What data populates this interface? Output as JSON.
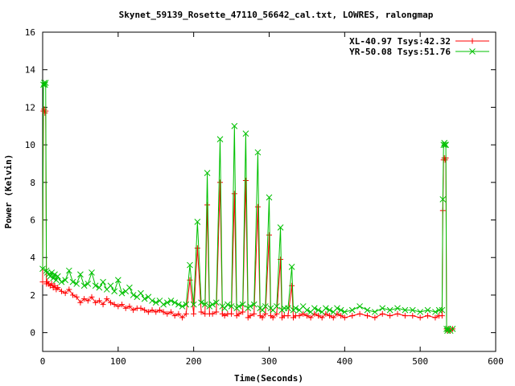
{
  "chart_data": {
    "type": "line",
    "title": "Skynet_59139_Rosette_47110_56642_cal.txt, LOWRES, ralongmap",
    "xlabel": "Time(Seconds)",
    "ylabel": "Power (Kelvin)",
    "xlim": [
      0,
      600
    ],
    "ylim": [
      -1,
      16
    ],
    "xticks": [
      0,
      100,
      200,
      300,
      400,
      500,
      600
    ],
    "yticks": [
      0,
      2,
      4,
      6,
      8,
      10,
      12,
      14,
      16
    ],
    "grid": false,
    "legend_position": "top-right",
    "series": [
      {
        "name": "XL-40.97 Tsys:42.32",
        "color": "#ff0000",
        "marker": "plus",
        "x": [
          0,
          1,
          2,
          3,
          4,
          5,
          6,
          8,
          10,
          12,
          14,
          16,
          18,
          20,
          25,
          30,
          35,
          40,
          45,
          50,
          55,
          60,
          65,
          70,
          75,
          80,
          85,
          90,
          95,
          100,
          105,
          110,
          115,
          120,
          125,
          130,
          135,
          140,
          145,
          150,
          155,
          160,
          165,
          170,
          175,
          180,
          185,
          190,
          195,
          200,
          205,
          210,
          215,
          218,
          221,
          225,
          230,
          235,
          238,
          241,
          245,
          250,
          254,
          257,
          260,
          265,
          269,
          272,
          275,
          280,
          285,
          288,
          291,
          295,
          300,
          302,
          305,
          310,
          315,
          317,
          320,
          325,
          330,
          332,
          335,
          340,
          345,
          350,
          355,
          360,
          365,
          370,
          375,
          380,
          385,
          390,
          395,
          400,
          410,
          420,
          430,
          440,
          450,
          460,
          470,
          480,
          490,
          500,
          510,
          520,
          525,
          529,
          530,
          531,
          532,
          533,
          534,
          535,
          536,
          537,
          540,
          543
        ],
        "y": [
          2.7,
          11.8,
          11.9,
          11.7,
          11.8,
          2.6,
          2.7,
          2.6,
          2.5,
          2.6,
          2.4,
          2.5,
          2.3,
          2.4,
          2.2,
          2.1,
          2.3,
          2.0,
          1.9,
          1.6,
          1.8,
          1.7,
          1.9,
          1.6,
          1.7,
          1.5,
          1.8,
          1.6,
          1.5,
          1.4,
          1.5,
          1.3,
          1.4,
          1.2,
          1.3,
          1.3,
          1.2,
          1.1,
          1.2,
          1.1,
          1.2,
          1.1,
          1.0,
          1.1,
          0.9,
          1.0,
          0.8,
          1.0,
          2.8,
          1.0,
          4.5,
          1.1,
          1.0,
          6.8,
          1.0,
          1.0,
          1.1,
          8.0,
          1.0,
          0.9,
          1.0,
          1.0,
          7.4,
          0.9,
          1.0,
          1.1,
          8.1,
          0.8,
          0.9,
          1.0,
          6.7,
          0.9,
          0.8,
          1.0,
          5.2,
          0.9,
          0.8,
          1.0,
          3.9,
          0.8,
          0.9,
          0.9,
          2.5,
          0.8,
          0.9,
          0.9,
          1.0,
          0.9,
          0.8,
          1.0,
          0.9,
          0.8,
          1.0,
          0.9,
          0.8,
          1.0,
          0.9,
          0.8,
          0.9,
          1.0,
          0.9,
          0.8,
          1.0,
          0.9,
          1.0,
          0.9,
          0.9,
          0.8,
          0.9,
          0.8,
          0.9,
          0.9,
          6.5,
          9.2,
          9.3,
          9.2,
          9.3,
          0.2,
          0.1,
          0.2,
          0.1,
          0.2
        ]
      },
      {
        "name": "YR-50.08 Tsys:51.76",
        "color": "#00c000",
        "marker": "cross",
        "x": [
          0,
          1,
          2,
          3,
          4,
          5,
          6,
          8,
          10,
          12,
          14,
          16,
          18,
          20,
          25,
          30,
          35,
          40,
          45,
          50,
          55,
          60,
          65,
          70,
          75,
          80,
          85,
          90,
          95,
          100,
          105,
          110,
          115,
          120,
          125,
          130,
          135,
          140,
          145,
          150,
          155,
          160,
          165,
          170,
          175,
          180,
          185,
          190,
          195,
          200,
          205,
          210,
          215,
          218,
          221,
          225,
          230,
          235,
          238,
          241,
          245,
          250,
          254,
          257,
          260,
          265,
          269,
          272,
          275,
          280,
          285,
          288,
          291,
          295,
          300,
          302,
          305,
          310,
          315,
          317,
          320,
          325,
          330,
          332,
          335,
          340,
          345,
          350,
          355,
          360,
          365,
          370,
          375,
          380,
          385,
          390,
          395,
          400,
          410,
          420,
          430,
          440,
          450,
          460,
          470,
          480,
          490,
          500,
          510,
          520,
          525,
          529,
          530,
          531,
          532,
          533,
          534,
          535,
          536,
          537,
          540,
          543
        ],
        "y": [
          3.4,
          13.2,
          13.3,
          13.2,
          13.3,
          3.3,
          3.2,
          3.1,
          3.0,
          3.2,
          2.9,
          3.1,
          2.8,
          3.0,
          2.7,
          2.8,
          3.3,
          2.7,
          2.6,
          3.1,
          2.5,
          2.6,
          3.2,
          2.5,
          2.4,
          2.7,
          2.3,
          2.5,
          2.2,
          2.8,
          2.1,
          2.2,
          2.4,
          2.0,
          1.9,
          2.1,
          1.8,
          1.9,
          1.7,
          1.6,
          1.7,
          1.5,
          1.6,
          1.7,
          1.6,
          1.5,
          1.4,
          1.5,
          3.6,
          1.5,
          5.9,
          1.6,
          1.5,
          8.5,
          1.4,
          1.5,
          1.6,
          10.3,
          1.4,
          1.3,
          1.5,
          1.4,
          11.0,
          1.3,
          1.4,
          1.5,
          10.6,
          1.3,
          1.4,
          1.5,
          9.6,
          1.3,
          1.2,
          1.4,
          7.2,
          1.3,
          1.2,
          1.4,
          5.6,
          1.2,
          1.3,
          1.3,
          3.5,
          1.2,
          1.3,
          1.2,
          1.4,
          1.2,
          1.1,
          1.3,
          1.2,
          1.1,
          1.3,
          1.2,
          1.1,
          1.3,
          1.2,
          1.1,
          1.2,
          1.4,
          1.2,
          1.1,
          1.3,
          1.2,
          1.3,
          1.2,
          1.2,
          1.1,
          1.2,
          1.1,
          1.2,
          1.2,
          7.1,
          10.0,
          10.1,
          10.0,
          10.0,
          0.2,
          0.1,
          0.2,
          0.1,
          0.2
        ]
      }
    ]
  }
}
